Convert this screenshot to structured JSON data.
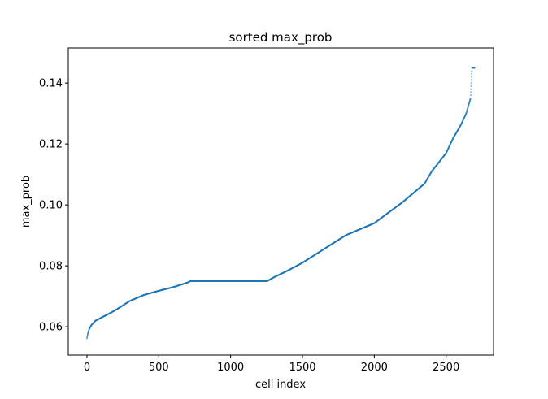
{
  "chart_data": {
    "type": "scatter",
    "title": "sorted max_prob",
    "xlabel": "cell index",
    "ylabel": "max_prob",
    "xlim": [
      -130,
      2830
    ],
    "ylim": [
      0.0507,
      0.1515
    ],
    "xticks": [
      0,
      500,
      1000,
      1500,
      2000,
      2500
    ],
    "xtick_labels": [
      "0",
      "500",
      "1000",
      "1500",
      "2000",
      "2500"
    ],
    "yticks": [
      0.06,
      0.08,
      0.1,
      0.12,
      0.14
    ],
    "ytick_labels": [
      "0.06",
      "0.08",
      "0.10",
      "0.12",
      "0.14"
    ],
    "grid": false,
    "legend": "none",
    "series_color": "#1f77b4",
    "n_points": 2700,
    "curve_knots": {
      "x": [
        0,
        5,
        15,
        30,
        60,
        100,
        150,
        200,
        250,
        300,
        400,
        500,
        600,
        700,
        720,
        1000,
        1255,
        1300,
        1400,
        1500,
        1600,
        1700,
        1800,
        1900,
        2000,
        2100,
        2200,
        2250,
        2300,
        2350,
        2400,
        2450,
        2500,
        2550,
        2600,
        2640,
        2670,
        2680,
        2700
      ],
      "y": [
        0.0562,
        0.0575,
        0.0592,
        0.0605,
        0.062,
        0.063,
        0.0642,
        0.0655,
        0.067,
        0.0685,
        0.0705,
        0.0718,
        0.073,
        0.0745,
        0.075,
        0.075,
        0.075,
        0.0762,
        0.0785,
        0.081,
        0.084,
        0.087,
        0.09,
        0.092,
        0.094,
        0.0975,
        0.101,
        0.103,
        0.105,
        0.107,
        0.111,
        0.114,
        0.117,
        0.122,
        0.126,
        0.13,
        0.135,
        0.145,
        0.145
      ]
    }
  }
}
